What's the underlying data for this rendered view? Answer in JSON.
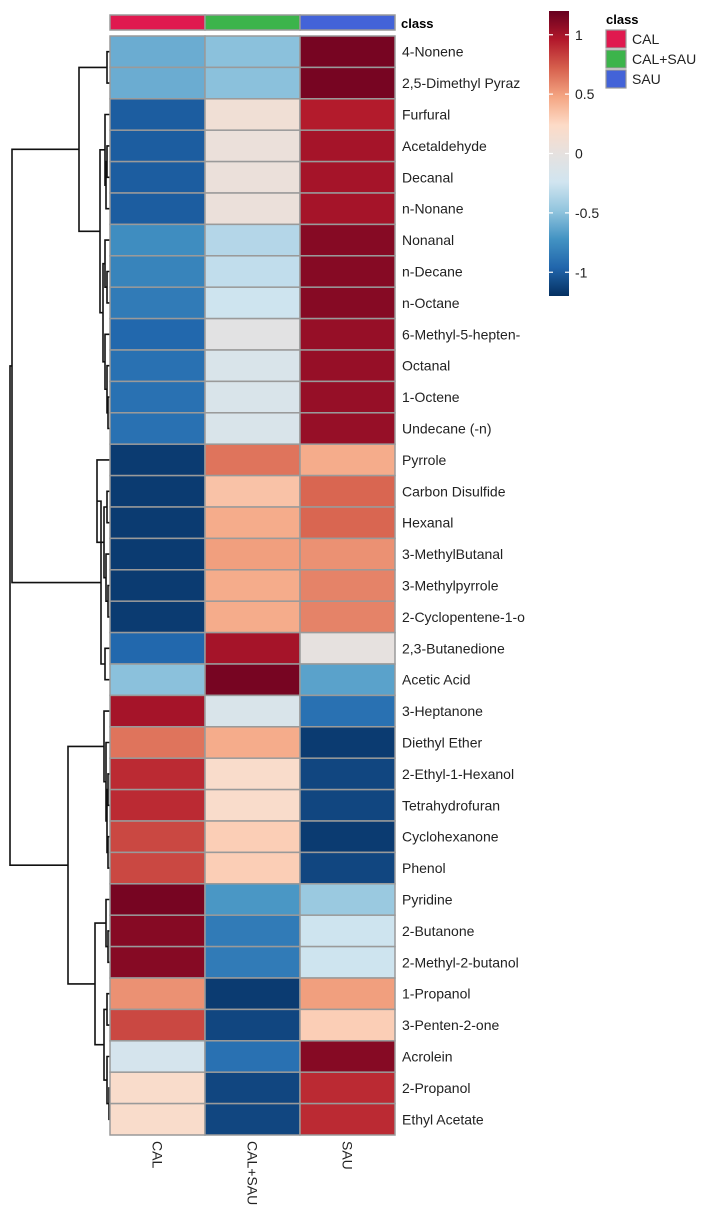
{
  "chart_data": {
    "type": "heatmap",
    "columns": [
      "CAL",
      "CAL+SAU",
      "SAU"
    ],
    "class_annotation": {
      "label": "class",
      "values": [
        "CAL",
        "CAL+SAU",
        "SAU"
      ],
      "colors": {
        "CAL": "#e0194f",
        "CAL+SAU": "#3cb44b",
        "SAU": "#4363d8"
      }
    },
    "rows": [
      "4-Nonene",
      "2,5-Dimethyl Pyraz",
      "Furfural",
      "Acetaldehyde",
      "Decanal",
      "n-Nonane",
      "Nonanal",
      "n-Decane",
      "n-Octane",
      "6-Methyl-5-hepten-",
      "Octanal",
      "1-Octene",
      "Undecane (-n)",
      "Pyrrole",
      "Carbon Disulfide",
      "Hexanal",
      "3-MethylButanal",
      "3-Methylpyrrole",
      "2-Cyclopentene-1-o",
      "2,3-Butanedione",
      "Acetic Acid",
      "3-Heptanone",
      "Diethyl Ether",
      "2-Ethyl-1-Hexanol",
      "Tetrahydrofuran",
      "Cyclohexanone",
      "Phenol",
      "Pyridine",
      "2-Butanone",
      "2-Methyl-2-butanol",
      "1-Propanol",
      "3-Penten-2-one",
      "Acrolein",
      "2-Propanol",
      "Ethyl Acetate"
    ],
    "values": [
      [
        -0.6,
        -0.5,
        1.15
      ],
      [
        -0.6,
        -0.5,
        1.15
      ],
      [
        -1.0,
        0.1,
        0.95
      ],
      [
        -1.0,
        0.05,
        1.0
      ],
      [
        -1.0,
        0.05,
        1.0
      ],
      [
        -1.0,
        0.05,
        1.0
      ],
      [
        -0.75,
        -0.35,
        1.1
      ],
      [
        -0.8,
        -0.3,
        1.1
      ],
      [
        -0.85,
        -0.25,
        1.1
      ],
      [
        -0.95,
        -0.05,
        1.05
      ],
      [
        -0.9,
        -0.15,
        1.05
      ],
      [
        -0.9,
        -0.15,
        1.05
      ],
      [
        -0.9,
        -0.15,
        1.05
      ],
      [
        -1.15,
        0.65,
        0.45
      ],
      [
        -1.15,
        0.35,
        0.7
      ],
      [
        -1.15,
        0.45,
        0.7
      ],
      [
        -1.15,
        0.5,
        0.55
      ],
      [
        -1.15,
        0.45,
        0.6
      ],
      [
        -1.15,
        0.45,
        0.6
      ],
      [
        -0.95,
        1.0,
        0.0
      ],
      [
        -0.5,
        1.15,
        -0.65
      ],
      [
        1.0,
        -0.15,
        -0.9
      ],
      [
        0.65,
        0.45,
        -1.15
      ],
      [
        0.9,
        0.2,
        -1.1
      ],
      [
        0.9,
        0.2,
        -1.1
      ],
      [
        0.8,
        0.3,
        -1.15
      ],
      [
        0.8,
        0.3,
        -1.1
      ],
      [
        1.15,
        -0.7,
        -0.45
      ],
      [
        1.1,
        -0.85,
        -0.25
      ],
      [
        1.1,
        -0.85,
        -0.25
      ],
      [
        0.55,
        -1.15,
        0.5
      ],
      [
        0.8,
        -1.1,
        0.3
      ],
      [
        -0.2,
        -0.9,
        1.1
      ],
      [
        0.2,
        -1.1,
        0.9
      ],
      [
        0.2,
        -1.1,
        0.9
      ]
    ],
    "color_scale": {
      "min": -1.2,
      "max": 1.2,
      "ticks": [
        1,
        0.5,
        0,
        -0.5,
        -1
      ],
      "colors": [
        "#053061",
        "#2166ac",
        "#4393c3",
        "#92c5de",
        "#d1e5f0",
        "#e6e1df",
        "#fddbc7",
        "#f4a582",
        "#d6604d",
        "#b2182b",
        "#67001f"
      ]
    },
    "legend": {
      "title": "class",
      "entries": [
        "CAL",
        "CAL+SAU",
        "SAU"
      ]
    },
    "dendrogram": "rows"
  }
}
